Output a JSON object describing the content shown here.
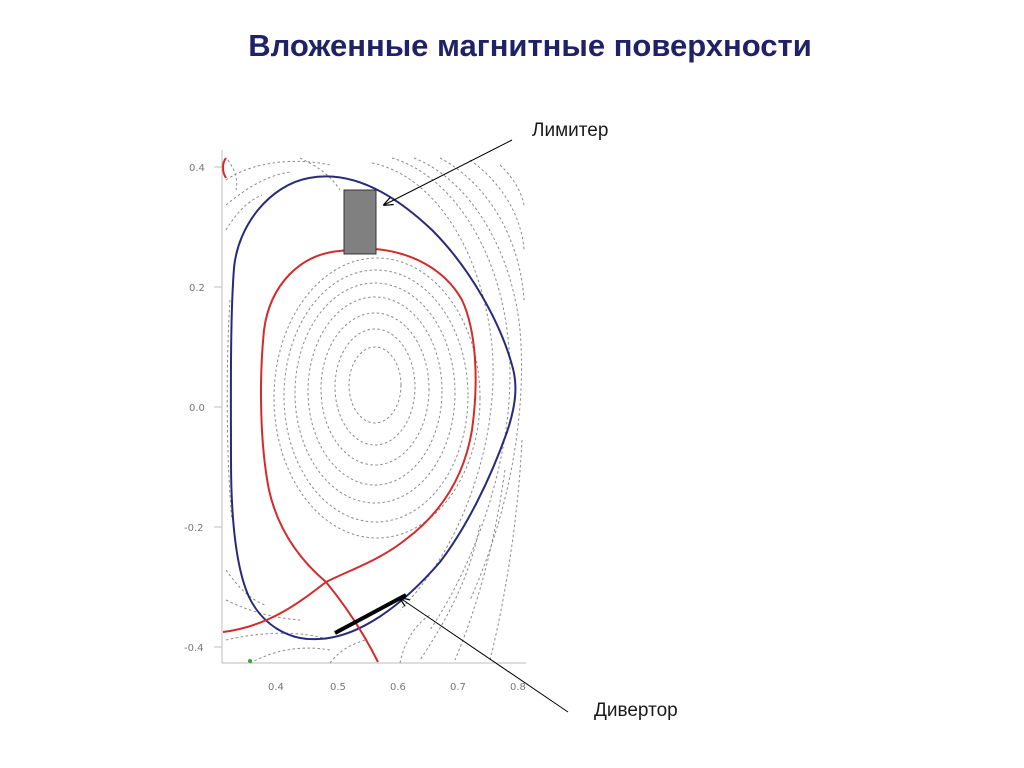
{
  "title": "Вложенные магнитные поверхности",
  "labels": {
    "limiter": "Лимитер",
    "divertor": "Дивертор"
  },
  "plot": {
    "y_ticks": [
      "0.4",
      "0.2",
      "0.0",
      "-0.2",
      "-0.4"
    ],
    "x_ticks": [
      "0.4",
      "0.5",
      "0.6",
      "0.7",
      "0.8"
    ]
  },
  "colors": {
    "title": "#1f2266",
    "boundary": "#2a2a7a",
    "separatrix": "#d42a2a",
    "flux_lines": "#888888",
    "limiter": "#808080",
    "divertor_plate": "#000000"
  }
}
